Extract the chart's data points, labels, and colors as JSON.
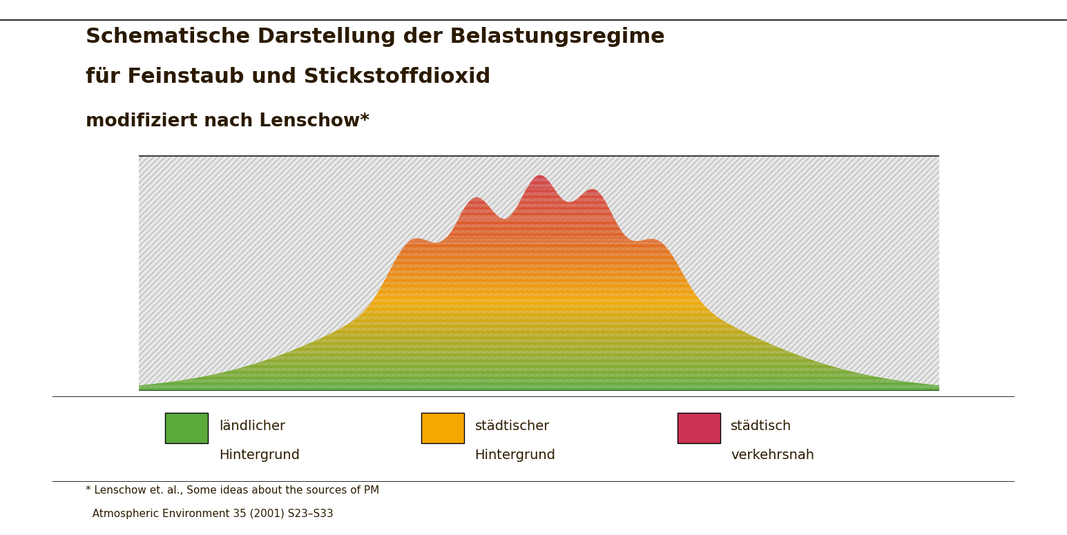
{
  "title_line1": "Schematische Darstellung der Belastungsregime",
  "title_line2": "für Feinstaub und Stickstoffdioxid",
  "title_line3": "modifiziert nach Lenschow*",
  "legend_items": [
    {
      "label_line1": "ländlicher",
      "label_line2": "Hintergrund",
      "color": "#5aaa3c"
    },
    {
      "label_line1": "städtischer",
      "label_line2": "Hintergrund",
      "color": "#f5a800"
    },
    {
      "label_line1": "städtisch",
      "label_line2": "verkehrsnah",
      "color": "#cc3355"
    }
  ],
  "footnote_line1": "* Lenschow et. al., Some ideas about the sources of PM",
  "footnote_line2": "  Atmospheric Environment 35 (2001) S23–S33",
  "bg_hatch_color": "#cccccc",
  "color_bottom": "#5aaa3c",
  "color_mid": "#f5a800",
  "color_top": "#cc3355",
  "title_color": "#2b1a00",
  "text_color": "#2b1a00"
}
